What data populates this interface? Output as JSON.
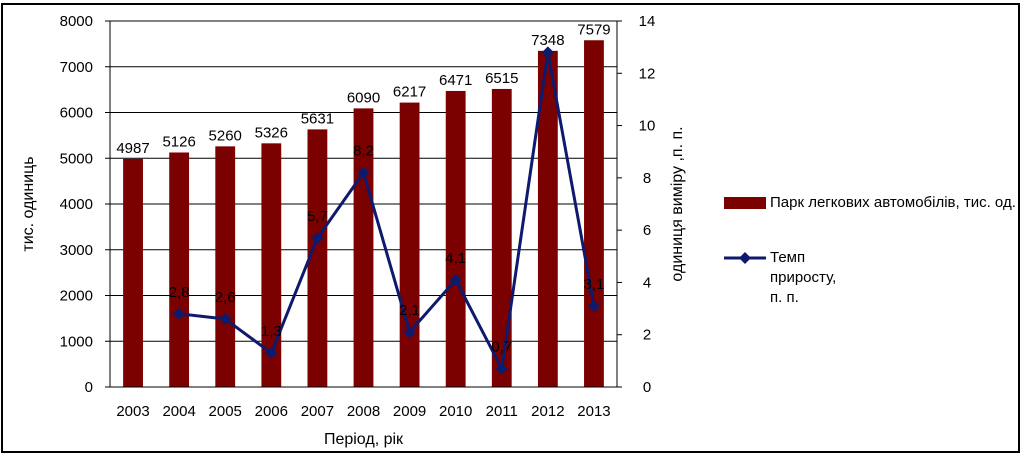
{
  "chart_data": {
    "type": "bar",
    "categories": [
      "2003",
      "2004",
      "2005",
      "2006",
      "2007",
      "2008",
      "2009",
      "2010",
      "2011",
      "2012",
      "2013"
    ],
    "series": [
      {
        "name": "Парк легкових автомобілів, тис. од.",
        "kind": "bar",
        "axis": "left",
        "color": "#7b0000",
        "values": [
          4987,
          5126,
          5260,
          5326,
          5631,
          6090,
          6217,
          6471,
          6515,
          7348,
          7579
        ],
        "labels": [
          "4987",
          "5126",
          "5260",
          "5326",
          "5631",
          "6090",
          "6217",
          "6471",
          "6515",
          "7348",
          "7579"
        ]
      },
      {
        "name": "Темп приросту, п. п.",
        "kind": "line",
        "axis": "right",
        "color": "#0d1a6e",
        "marker": "diamond",
        "values": [
          null,
          2.8,
          2.6,
          1.3,
          5.7,
          8.2,
          2.1,
          4.1,
          0.7,
          12.8,
          3.1
        ],
        "labels": [
          null,
          "2,8",
          "2,6",
          "1,3",
          "5,7",
          "8,2",
          "2,1",
          "4,1",
          "0,7",
          "",
          "3,1"
        ]
      }
    ],
    "xlabel": "Період, рік",
    "ylabel": "тис. одиниць",
    "y2label": "одиниця виміру ,п. п.",
    "ylim": [
      0,
      8000
    ],
    "yticks": [
      0,
      1000,
      2000,
      3000,
      4000,
      5000,
      6000,
      7000,
      8000
    ],
    "y2lim": [
      0,
      14
    ],
    "y2ticks": [
      0,
      2,
      4,
      6,
      8,
      10,
      12,
      14
    ],
    "grid": true,
    "legend_position": "right"
  },
  "legend": {
    "bar_label": "Парк легкових автомобілів, тис. од.",
    "line_label": "Темп приросту, п. п."
  }
}
